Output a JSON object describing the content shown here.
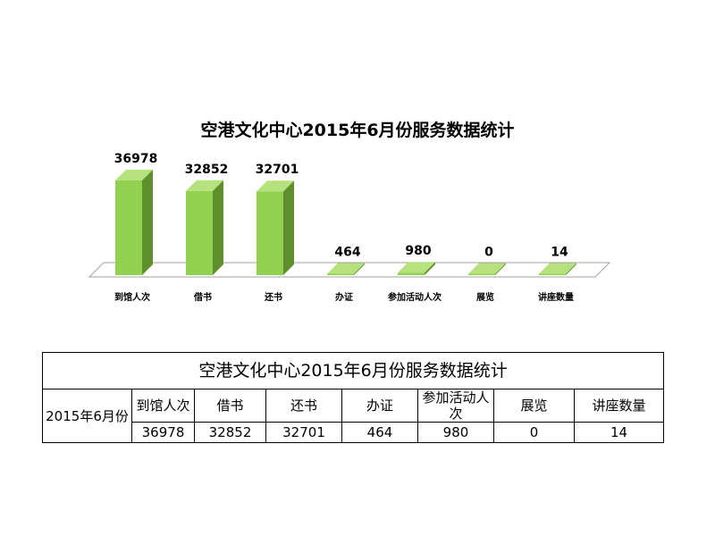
{
  "chart_data": {
    "type": "bar",
    "title": "空港文化中心2015年6月份服务数据统计",
    "categories": [
      "到馆人次",
      "借书",
      "还书",
      "办证",
      "参加活动人次",
      "展览",
      "讲座数量"
    ],
    "values": [
      36978,
      32852,
      32701,
      464,
      980,
      0,
      14
    ],
    "ylim": [
      0,
      38000
    ],
    "grid": false,
    "legend": "none",
    "colors": {
      "bar_front": "#92d050",
      "bar_side": "#5e8f2a",
      "bar_top": "#b5e27c",
      "floor": "#ffffff",
      "floor_stroke": "#a0a0a0"
    }
  },
  "table": {
    "title": "空港文化中心2015年6月份服务数据统计",
    "row_header": "2015年6月份",
    "columns": [
      "到馆人次",
      "借书",
      "还书",
      "办证",
      "参加活动人次",
      "展览",
      "讲座数量"
    ],
    "values": [
      "36978",
      "32852",
      "32701",
      "464",
      "980",
      "0",
      "14"
    ]
  }
}
